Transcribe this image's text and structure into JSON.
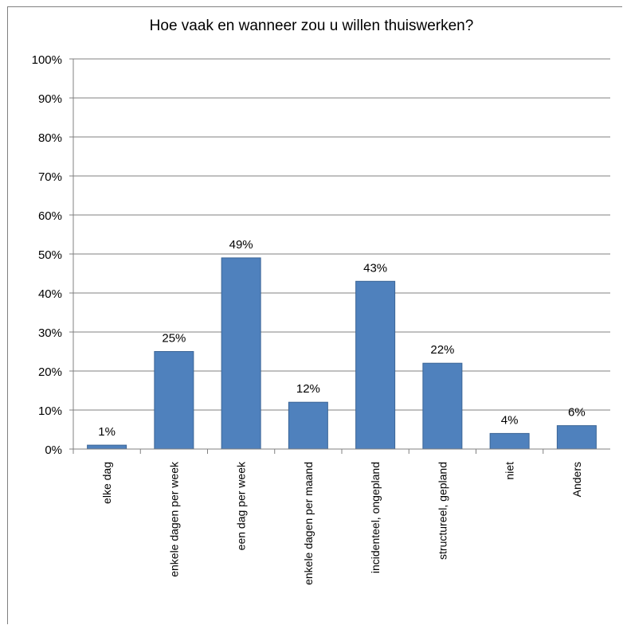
{
  "chart_data": {
    "type": "bar",
    "title": "Hoe vaak en wanneer zou u willen thuiswerken?",
    "xlabel": "",
    "ylabel": "",
    "categories": [
      "elke dag",
      "enkele dagen per week",
      "een dag per week",
      "enkele dagen per maand",
      "incidenteel, ongepland",
      "structureel, gepland",
      "niet",
      "Anders"
    ],
    "values": [
      1,
      25,
      49,
      12,
      43,
      22,
      4,
      6
    ],
    "value_labels": [
      "1%",
      "25%",
      "49%",
      "12%",
      "43%",
      "22%",
      "4%",
      "6%"
    ],
    "yticks": [
      "0%",
      "10%",
      "20%",
      "30%",
      "40%",
      "50%",
      "60%",
      "70%",
      "80%",
      "90%",
      "100%"
    ],
    "ylim": [
      0,
      100
    ],
    "grid": true,
    "legend": "none",
    "bar_color": "#4f81bd",
    "plot_background": "#ffffff",
    "gridline_color": "#808080"
  }
}
